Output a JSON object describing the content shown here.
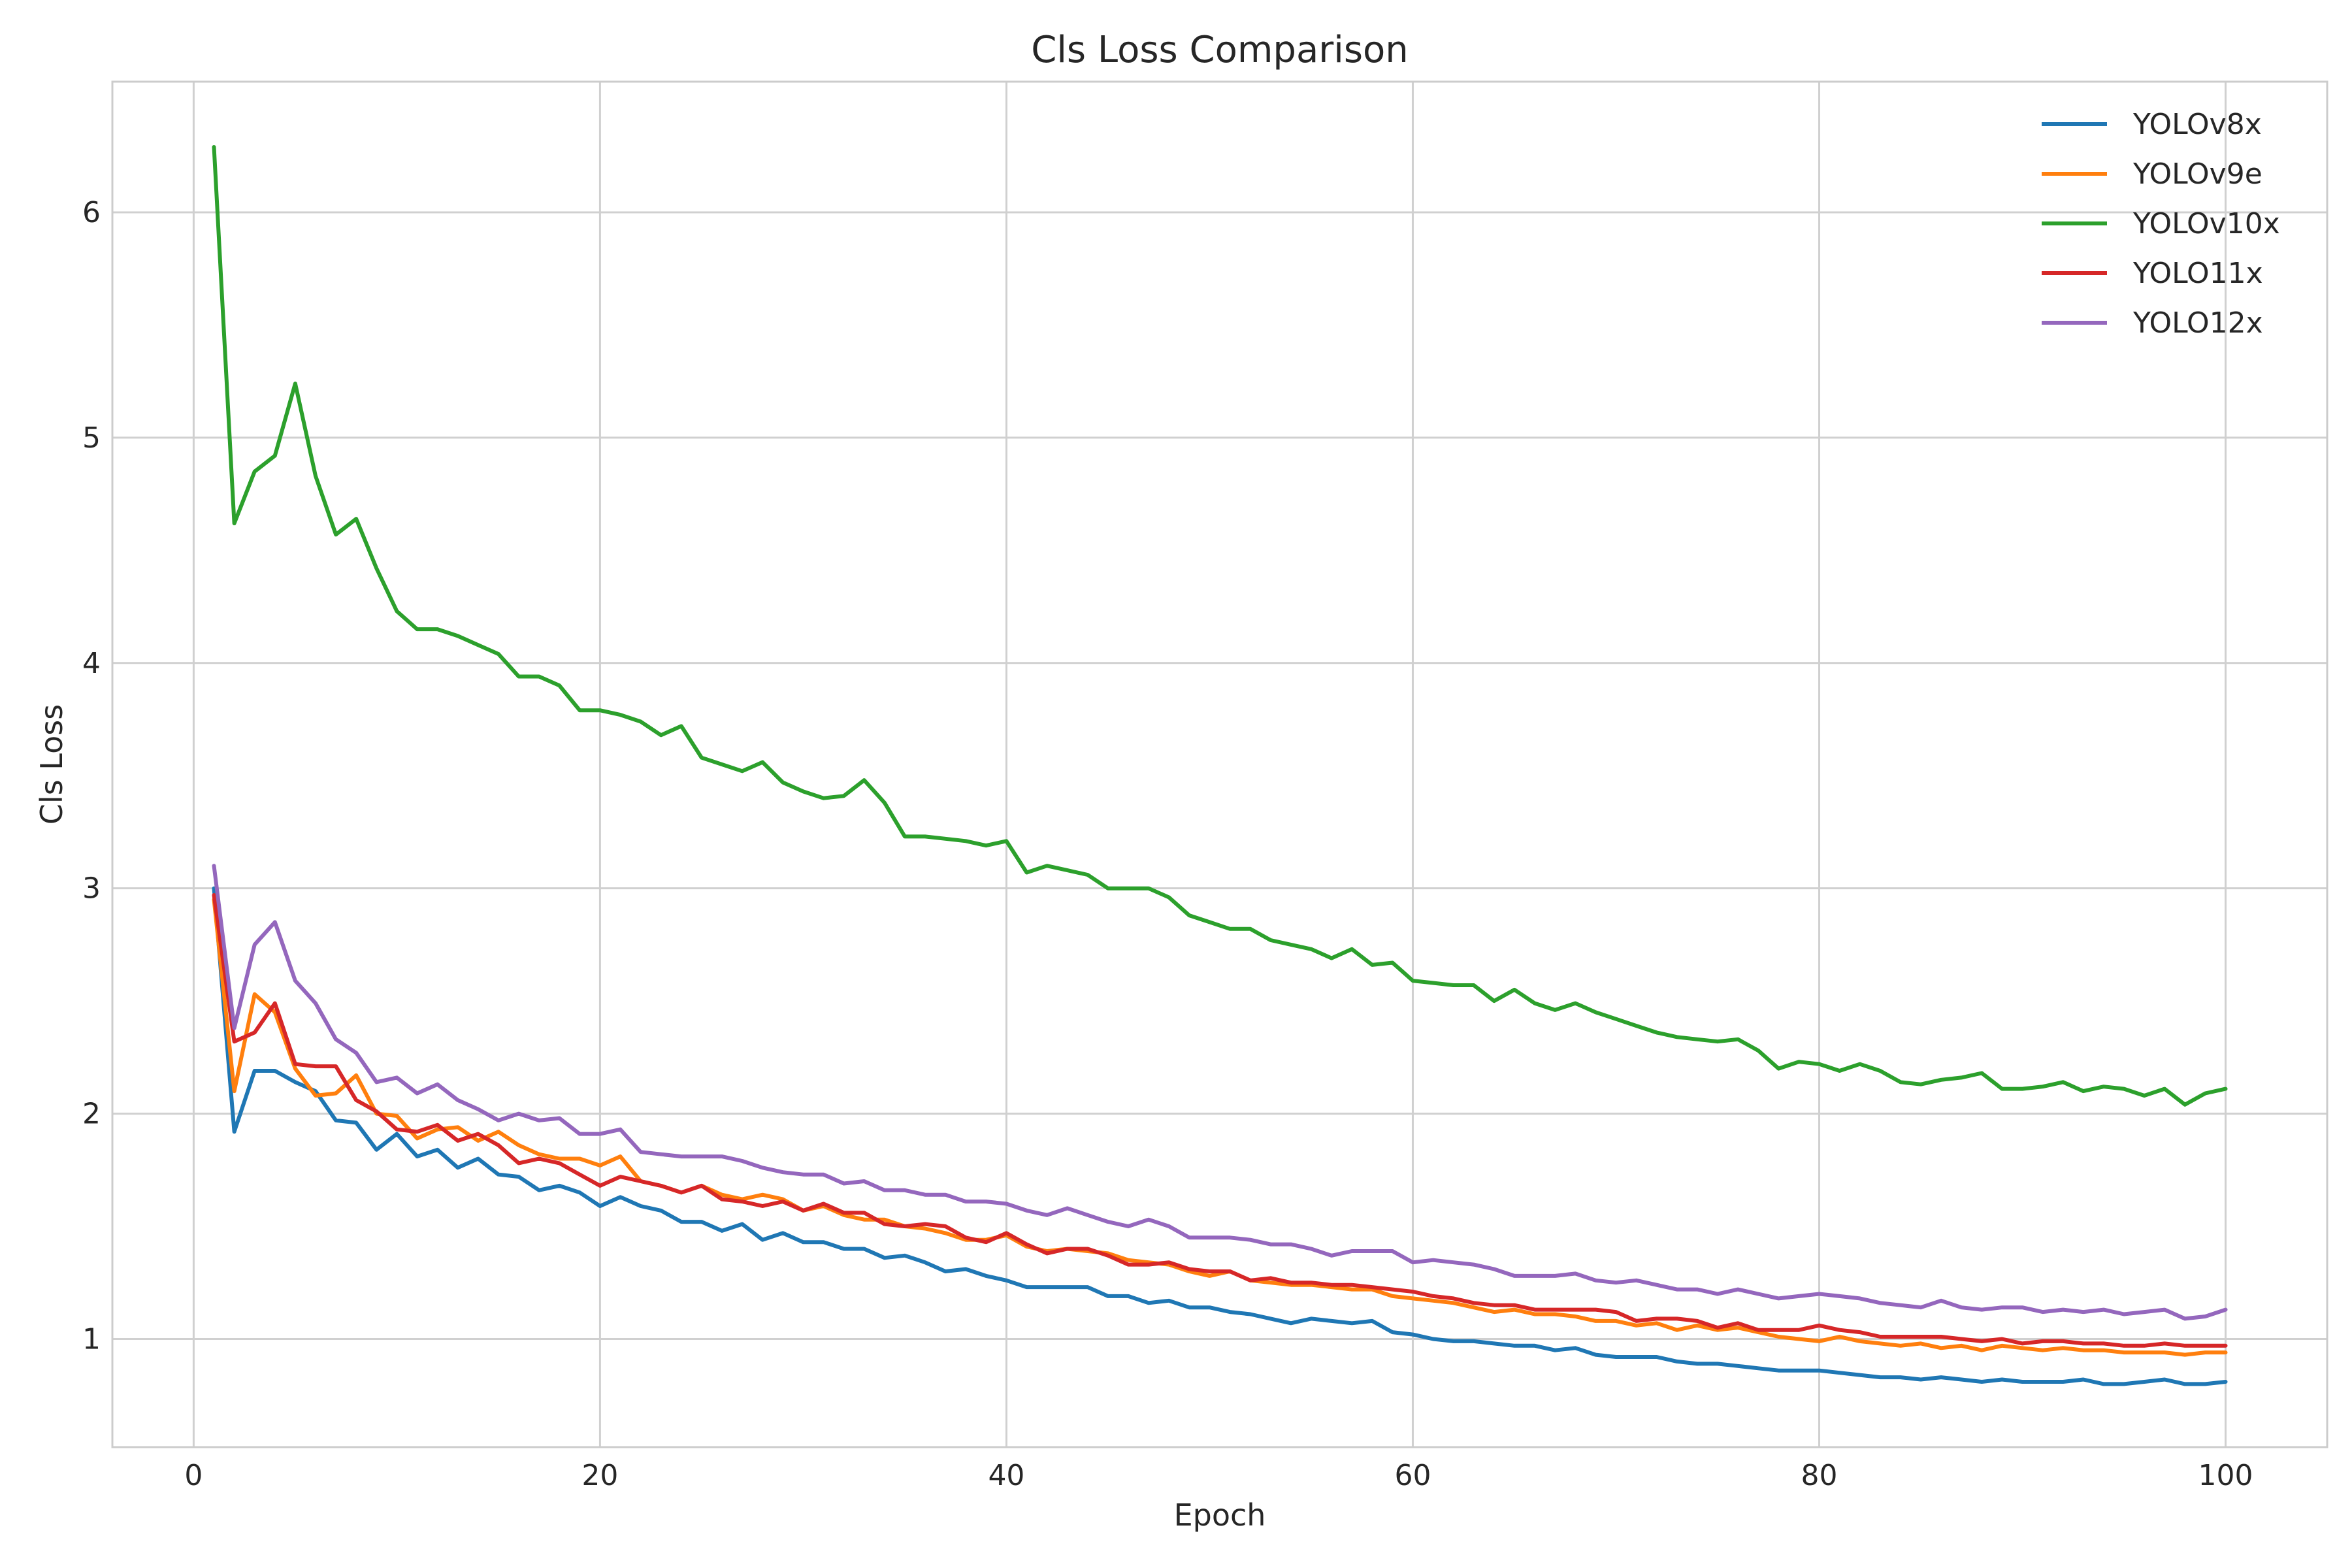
{
  "chart_data": {
    "type": "line",
    "title": "Cls Loss Comparison",
    "xlabel": "Epoch",
    "ylabel": "Cls Loss",
    "xlim": [
      -4,
      105
    ],
    "ylim": [
      0.52,
      6.58
    ],
    "xticks": [
      0,
      20,
      40,
      60,
      80,
      100
    ],
    "yticks": [
      1,
      2,
      3,
      4,
      5,
      6
    ],
    "grid": true,
    "legend_position": "top-right",
    "series": [
      {
        "name": "YOLOv8x",
        "color": "#1f77b4",
        "x": [
          1,
          2,
          3,
          4,
          5,
          6,
          7,
          8,
          9,
          10,
          11,
          12,
          13,
          14,
          15,
          16,
          17,
          18,
          19,
          20,
          21,
          22,
          23,
          24,
          25,
          26,
          27,
          28,
          29,
          30,
          31,
          32,
          33,
          34,
          35,
          36,
          37,
          38,
          39,
          40,
          41,
          42,
          43,
          44,
          45,
          46,
          47,
          48,
          49,
          50,
          51,
          52,
          53,
          54,
          55,
          56,
          57,
          58,
          59,
          60,
          61,
          62,
          63,
          64,
          65,
          66,
          67,
          68,
          69,
          70,
          71,
          72,
          73,
          74,
          75,
          76,
          77,
          78,
          79,
          80,
          81,
          82,
          83,
          84,
          85,
          86,
          87,
          88,
          89,
          90,
          91,
          92,
          93,
          94,
          95,
          96,
          97,
          98,
          99,
          100
        ],
        "values": [
          3.0,
          1.92,
          2.19,
          2.19,
          2.14,
          2.1,
          1.97,
          1.96,
          1.84,
          1.91,
          1.81,
          1.84,
          1.76,
          1.8,
          1.73,
          1.72,
          1.66,
          1.68,
          1.65,
          1.59,
          1.63,
          1.59,
          1.57,
          1.52,
          1.52,
          1.48,
          1.51,
          1.44,
          1.47,
          1.43,
          1.43,
          1.4,
          1.4,
          1.36,
          1.37,
          1.34,
          1.3,
          1.31,
          1.28,
          1.26,
          1.23,
          1.23,
          1.23,
          1.23,
          1.19,
          1.19,
          1.16,
          1.17,
          1.14,
          1.14,
          1.12,
          1.11,
          1.09,
          1.07,
          1.09,
          1.08,
          1.07,
          1.08,
          1.03,
          1.02,
          1.0,
          0.99,
          0.99,
          0.98,
          0.97,
          0.97,
          0.95,
          0.96,
          0.93,
          0.92,
          0.92,
          0.92,
          0.9,
          0.89,
          0.89,
          0.88,
          0.87,
          0.86,
          0.86,
          0.86,
          0.85,
          0.84,
          0.83,
          0.83,
          0.82,
          0.83,
          0.82,
          0.81,
          0.82,
          0.81,
          0.81,
          0.81,
          0.82,
          0.8,
          0.8,
          0.81,
          0.82,
          0.8,
          0.8,
          0.81
        ]
      },
      {
        "name": "YOLOv9e",
        "color": "#ff7f0e",
        "x": [
          1,
          2,
          3,
          4,
          5,
          6,
          7,
          8,
          9,
          10,
          11,
          12,
          13,
          14,
          15,
          16,
          17,
          18,
          19,
          20,
          21,
          22,
          23,
          24,
          25,
          26,
          27,
          28,
          29,
          30,
          31,
          32,
          33,
          34,
          35,
          36,
          37,
          38,
          39,
          40,
          41,
          42,
          43,
          44,
          45,
          46,
          47,
          48,
          49,
          50,
          51,
          52,
          53,
          54,
          55,
          56,
          57,
          58,
          59,
          60,
          61,
          62,
          63,
          64,
          65,
          66,
          67,
          68,
          69,
          70,
          71,
          72,
          73,
          74,
          75,
          76,
          77,
          78,
          79,
          80,
          81,
          82,
          83,
          84,
          85,
          86,
          87,
          88,
          89,
          90,
          91,
          92,
          93,
          94,
          95,
          96,
          97,
          98,
          99,
          100
        ],
        "values": [
          2.95,
          2.1,
          2.53,
          2.45,
          2.2,
          2.08,
          2.09,
          2.17,
          2.0,
          1.99,
          1.89,
          1.93,
          1.94,
          1.88,
          1.92,
          1.86,
          1.82,
          1.8,
          1.8,
          1.77,
          1.81,
          1.7,
          1.68,
          1.65,
          1.68,
          1.64,
          1.62,
          1.64,
          1.62,
          1.57,
          1.59,
          1.55,
          1.53,
          1.53,
          1.5,
          1.49,
          1.47,
          1.44,
          1.44,
          1.46,
          1.41,
          1.39,
          1.4,
          1.39,
          1.38,
          1.35,
          1.34,
          1.33,
          1.3,
          1.28,
          1.3,
          1.26,
          1.25,
          1.24,
          1.24,
          1.23,
          1.22,
          1.22,
          1.19,
          1.18,
          1.17,
          1.16,
          1.14,
          1.12,
          1.13,
          1.11,
          1.11,
          1.1,
          1.08,
          1.08,
          1.06,
          1.07,
          1.04,
          1.06,
          1.04,
          1.05,
          1.03,
          1.01,
          1.0,
          0.99,
          1.01,
          0.99,
          0.98,
          0.97,
          0.98,
          0.96,
          0.97,
          0.95,
          0.97,
          0.96,
          0.95,
          0.96,
          0.95,
          0.95,
          0.94,
          0.94,
          0.94,
          0.93,
          0.94,
          0.94
        ]
      },
      {
        "name": "YOLOv10x",
        "color": "#2ca02c",
        "x": [
          1,
          2,
          3,
          4,
          5,
          6,
          7,
          8,
          9,
          10,
          11,
          12,
          13,
          14,
          15,
          16,
          17,
          18,
          19,
          20,
          21,
          22,
          23,
          24,
          25,
          26,
          27,
          28,
          29,
          30,
          31,
          32,
          33,
          34,
          35,
          36,
          37,
          38,
          39,
          40,
          41,
          42,
          43,
          44,
          45,
          46,
          47,
          48,
          49,
          50,
          51,
          52,
          53,
          54,
          55,
          56,
          57,
          58,
          59,
          60,
          61,
          62,
          63,
          64,
          65,
          66,
          67,
          68,
          69,
          70,
          71,
          72,
          73,
          74,
          75,
          76,
          77,
          78,
          79,
          80,
          81,
          82,
          83,
          84,
          85,
          86,
          87,
          88,
          89,
          90,
          91,
          92,
          93,
          94,
          95,
          96,
          97,
          98,
          99,
          100
        ],
        "values": [
          6.29,
          4.62,
          4.85,
          4.92,
          5.24,
          4.83,
          4.57,
          4.64,
          4.42,
          4.23,
          4.15,
          4.15,
          4.12,
          4.08,
          4.04,
          3.94,
          3.94,
          3.9,
          3.79,
          3.79,
          3.77,
          3.74,
          3.68,
          3.72,
          3.58,
          3.55,
          3.52,
          3.56,
          3.47,
          3.43,
          3.4,
          3.41,
          3.48,
          3.38,
          3.23,
          3.23,
          3.22,
          3.21,
          3.19,
          3.21,
          3.07,
          3.1,
          3.08,
          3.06,
          3.0,
          3.0,
          3.0,
          2.96,
          2.88,
          2.85,
          2.82,
          2.82,
          2.77,
          2.75,
          2.73,
          2.69,
          2.73,
          2.66,
          2.67,
          2.59,
          2.58,
          2.57,
          2.57,
          2.5,
          2.55,
          2.49,
          2.46,
          2.49,
          2.45,
          2.42,
          2.39,
          2.36,
          2.34,
          2.33,
          2.32,
          2.33,
          2.28,
          2.2,
          2.23,
          2.22,
          2.19,
          2.22,
          2.19,
          2.14,
          2.13,
          2.15,
          2.16,
          2.18,
          2.11,
          2.11,
          2.12,
          2.14,
          2.1,
          2.12,
          2.11,
          2.08,
          2.11,
          2.04,
          2.09,
          2.11
        ]
      },
      {
        "name": "YOLO11x",
        "color": "#d62728",
        "x": [
          1,
          2,
          3,
          4,
          5,
          6,
          7,
          8,
          9,
          10,
          11,
          12,
          13,
          14,
          15,
          16,
          17,
          18,
          19,
          20,
          21,
          22,
          23,
          24,
          25,
          26,
          27,
          28,
          29,
          30,
          31,
          32,
          33,
          34,
          35,
          36,
          37,
          38,
          39,
          40,
          41,
          42,
          43,
          44,
          45,
          46,
          47,
          48,
          49,
          50,
          51,
          52,
          53,
          54,
          55,
          56,
          57,
          58,
          59,
          60,
          61,
          62,
          63,
          64,
          65,
          66,
          67,
          68,
          69,
          70,
          71,
          72,
          73,
          74,
          75,
          76,
          77,
          78,
          79,
          80,
          81,
          82,
          83,
          84,
          85,
          86,
          87,
          88,
          89,
          90,
          91,
          92,
          93,
          94,
          95,
          96,
          97,
          98,
          99,
          100
        ],
        "values": [
          2.97,
          2.32,
          2.36,
          2.49,
          2.22,
          2.21,
          2.21,
          2.06,
          2.01,
          1.93,
          1.92,
          1.95,
          1.88,
          1.91,
          1.86,
          1.78,
          1.8,
          1.78,
          1.73,
          1.68,
          1.72,
          1.7,
          1.68,
          1.65,
          1.68,
          1.62,
          1.61,
          1.59,
          1.61,
          1.57,
          1.6,
          1.56,
          1.56,
          1.51,
          1.5,
          1.51,
          1.5,
          1.45,
          1.43,
          1.47,
          1.42,
          1.38,
          1.4,
          1.4,
          1.37,
          1.33,
          1.33,
          1.34,
          1.31,
          1.3,
          1.3,
          1.26,
          1.27,
          1.25,
          1.25,
          1.24,
          1.24,
          1.23,
          1.22,
          1.21,
          1.19,
          1.18,
          1.16,
          1.15,
          1.15,
          1.13,
          1.13,
          1.13,
          1.13,
          1.12,
          1.08,
          1.09,
          1.09,
          1.08,
          1.05,
          1.07,
          1.04,
          1.04,
          1.04,
          1.06,
          1.04,
          1.03,
          1.01,
          1.01,
          1.01,
          1.01,
          1.0,
          0.99,
          1.0,
          0.98,
          0.99,
          0.99,
          0.98,
          0.98,
          0.97,
          0.97,
          0.98,
          0.97,
          0.97,
          0.97
        ]
      },
      {
        "name": "YOLO12x",
        "color": "#9467bd",
        "x": [
          1,
          2,
          3,
          4,
          5,
          6,
          7,
          8,
          9,
          10,
          11,
          12,
          13,
          14,
          15,
          16,
          17,
          18,
          19,
          20,
          21,
          22,
          23,
          24,
          25,
          26,
          27,
          28,
          29,
          30,
          31,
          32,
          33,
          34,
          35,
          36,
          37,
          38,
          39,
          40,
          41,
          42,
          43,
          44,
          45,
          46,
          47,
          48,
          49,
          50,
          51,
          52,
          53,
          54,
          55,
          56,
          57,
          58,
          59,
          60,
          61,
          62,
          63,
          64,
          65,
          66,
          67,
          68,
          69,
          70,
          71,
          72,
          73,
          74,
          75,
          76,
          77,
          78,
          79,
          80,
          81,
          82,
          83,
          84,
          85,
          86,
          87,
          88,
          89,
          90,
          91,
          92,
          93,
          94,
          95,
          96,
          97,
          98,
          99,
          100
        ],
        "values": [
          3.1,
          2.38,
          2.75,
          2.85,
          2.59,
          2.49,
          2.33,
          2.27,
          2.14,
          2.16,
          2.09,
          2.13,
          2.06,
          2.02,
          1.97,
          2.0,
          1.97,
          1.98,
          1.91,
          1.91,
          1.93,
          1.83,
          1.82,
          1.81,
          1.81,
          1.81,
          1.79,
          1.76,
          1.74,
          1.73,
          1.73,
          1.69,
          1.7,
          1.66,
          1.66,
          1.64,
          1.64,
          1.61,
          1.61,
          1.6,
          1.57,
          1.55,
          1.58,
          1.55,
          1.52,
          1.5,
          1.53,
          1.5,
          1.45,
          1.45,
          1.45,
          1.44,
          1.42,
          1.42,
          1.4,
          1.37,
          1.39,
          1.39,
          1.39,
          1.34,
          1.35,
          1.34,
          1.33,
          1.31,
          1.28,
          1.28,
          1.28,
          1.29,
          1.26,
          1.25,
          1.26,
          1.24,
          1.22,
          1.22,
          1.2,
          1.22,
          1.2,
          1.18,
          1.19,
          1.2,
          1.19,
          1.18,
          1.16,
          1.15,
          1.14,
          1.17,
          1.14,
          1.13,
          1.14,
          1.14,
          1.12,
          1.13,
          1.12,
          1.13,
          1.11,
          1.12,
          1.13,
          1.09,
          1.1,
          1.13
        ]
      }
    ]
  }
}
